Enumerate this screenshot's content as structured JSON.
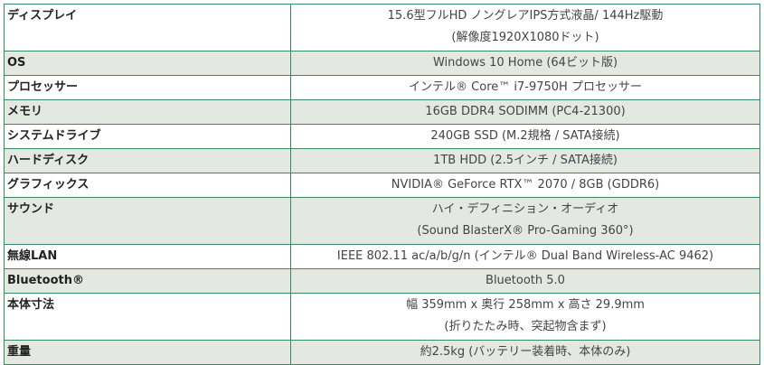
{
  "colors": {
    "border": "#3a8a5e",
    "alt_row": "#e4e8e3"
  },
  "specs": [
    {
      "label": "ディスプレイ",
      "lines": [
        "15.6型フルHD ノングレアIPS方式液晶/ 144Hz駆動",
        "(解像度1920X1080ドット)"
      ]
    },
    {
      "label": "OS",
      "lines": [
        "Windows 10 Home (64ビット版)"
      ]
    },
    {
      "label": "プロセッサー",
      "lines": [
        "インテル® Core™ i7-9750H プロセッサー"
      ]
    },
    {
      "label": "メモリ",
      "lines": [
        "16GB DDR4 SODIMM (PC4-21300)"
      ]
    },
    {
      "label": "システムドライブ",
      "lines": [
        "240GB SSD (M.2規格 / SATA接続)"
      ]
    },
    {
      "label": "ハードディスク",
      "lines": [
        "1TB HDD (2.5インチ / SATA接続)"
      ]
    },
    {
      "label": "グラフィックス",
      "lines": [
        "NVIDIA® GeForce RTX™ 2070 / 8GB (GDDR6)"
      ]
    },
    {
      "label": "サウンド",
      "lines": [
        "ハイ・デフィニション・オーディオ",
        "(Sound BlasterX® Pro-Gaming 360°)"
      ]
    },
    {
      "label": "無線LAN",
      "lines": [
        "IEEE 802.11 ac/a/b/g/n (インテル® Dual Band Wireless-AC 9462)"
      ]
    },
    {
      "label": "Bluetooth®",
      "lines": [
        "Bluetooth 5.0"
      ]
    },
    {
      "label": "本体寸法",
      "lines": [
        "幅 359mm x 奥行 258mm x 高さ 29.9mm",
        "(折りたたみ時、突起物含まず)"
      ]
    },
    {
      "label": "重量",
      "lines": [
        "約2.5kg (バッテリー装着時、本体のみ)"
      ]
    }
  ]
}
